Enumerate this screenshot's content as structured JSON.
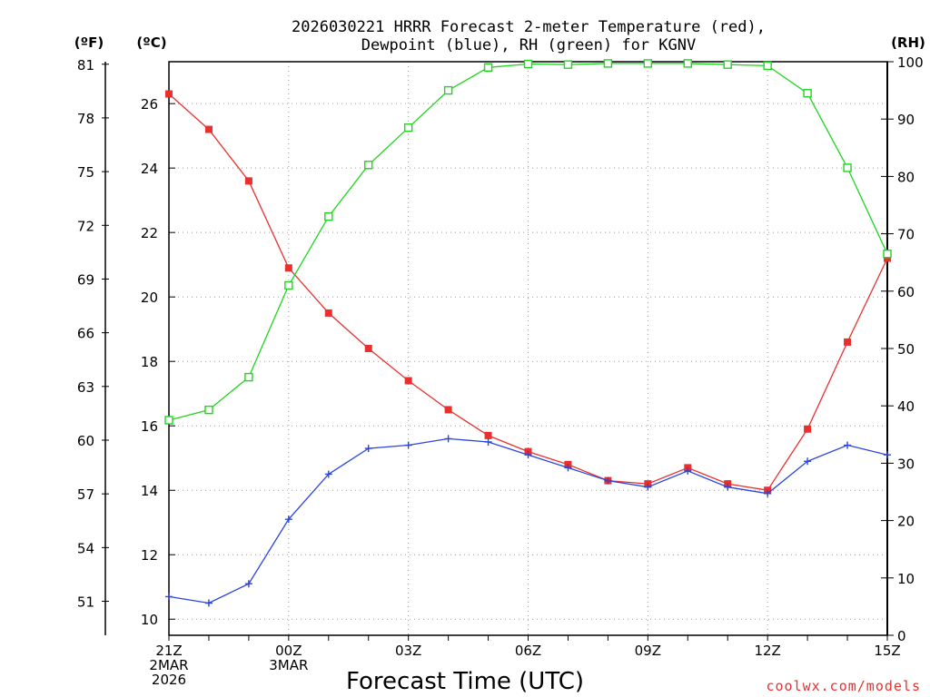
{
  "title": {
    "line1": "2026030221 HRRR Forecast 2-meter Temperature (red),",
    "line2": "Dewpoint (blue), RH (green) for KGNV"
  },
  "axis_units": {
    "fahrenheit": "(ºF)",
    "celsius": "(ºC)",
    "rh": "(RH)"
  },
  "xlabel": "Forecast Time (UTC)",
  "credit": "coolwx.com/models",
  "colors": {
    "temperature": "#e8302e",
    "dewpoint": "#2a44e0",
    "rh": "#1ed61e",
    "axis": "#000000"
  },
  "chart_data": {
    "type": "line",
    "title": "2026030221 HRRR Forecast 2-meter Temperature (red), Dewpoint (blue), RH (green) for KGNV",
    "xlabel": "Forecast Time (UTC)",
    "x_hours_utc": [
      "21Z",
      "22Z",
      "23Z",
      "00Z",
      "01Z",
      "02Z",
      "03Z",
      "04Z",
      "05Z",
      "06Z",
      "07Z",
      "08Z",
      "09Z",
      "10Z",
      "11Z",
      "12Z",
      "13Z",
      "14Z",
      "15Z"
    ],
    "x_tick_labels": [
      {
        "hour": "21Z",
        "lines": [
          "21Z",
          "2MAR",
          "2026"
        ]
      },
      {
        "hour": "00Z",
        "lines": [
          "00Z",
          "3MAR"
        ]
      },
      {
        "hour": "03Z",
        "lines": [
          "03Z"
        ]
      },
      {
        "hour": "06Z",
        "lines": [
          "06Z"
        ]
      },
      {
        "hour": "09Z",
        "lines": [
          "09Z"
        ]
      },
      {
        "hour": "12Z",
        "lines": [
          "12Z"
        ]
      },
      {
        "hour": "15Z",
        "lines": [
          "15Z"
        ]
      }
    ],
    "y_celsius_range": [
      9.5,
      27.3
    ],
    "y_celsius_ticks": [
      10,
      12,
      14,
      16,
      18,
      20,
      22,
      24,
      26
    ],
    "y_fahrenheit_ticks": [
      51,
      54,
      57,
      60,
      63,
      66,
      69,
      72,
      75,
      78,
      81
    ],
    "y_rh_range": [
      0,
      100
    ],
    "y_rh_ticks": [
      0,
      10,
      20,
      30,
      40,
      50,
      60,
      70,
      80,
      90,
      100
    ],
    "grid": true,
    "series": [
      {
        "name": "Temperature (red)",
        "axis": "celsius",
        "marker": "filled-square",
        "values": [
          26.3,
          25.2,
          23.6,
          20.9,
          19.5,
          18.4,
          17.4,
          16.5,
          15.7,
          15.2,
          14.8,
          14.3,
          14.2,
          14.7,
          14.2,
          14.0,
          15.9,
          18.6,
          21.2
        ]
      },
      {
        "name": "Dewpoint (blue)",
        "axis": "celsius",
        "marker": "plus",
        "values": [
          10.7,
          10.5,
          11.1,
          13.1,
          14.5,
          15.3,
          15.4,
          15.6,
          15.5,
          15.1,
          14.7,
          14.3,
          14.1,
          14.6,
          14.1,
          13.9,
          14.9,
          15.4,
          15.1
        ]
      },
      {
        "name": "RH (green)",
        "axis": "rh",
        "marker": "open-square",
        "values": [
          37.5,
          39.3,
          45,
          61,
          73,
          82,
          88.5,
          95,
          99,
          99.6,
          99.5,
          99.7,
          99.7,
          99.7,
          99.5,
          99.3,
          94.5,
          81.5,
          66.5
        ]
      }
    ]
  }
}
